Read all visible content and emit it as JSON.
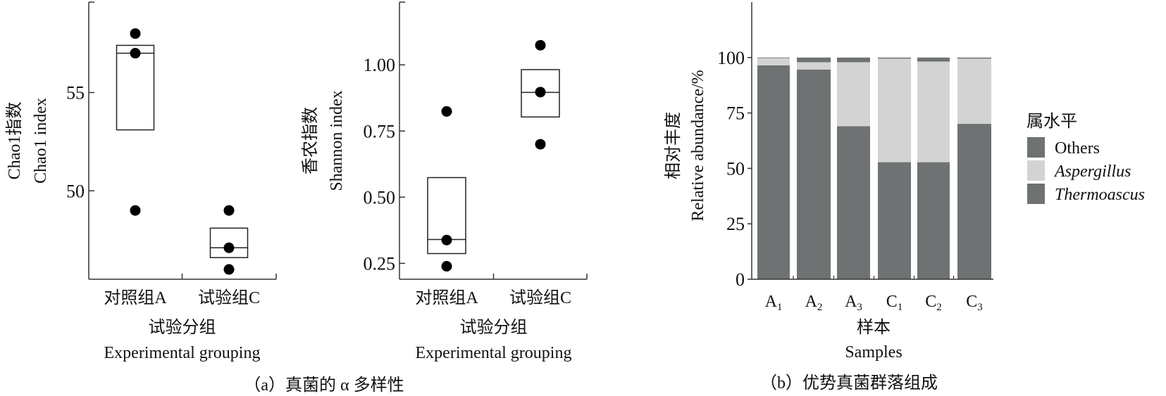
{
  "chart_data": [
    {
      "type": "box",
      "panel": "a-left",
      "ylabel_cn": "Chao1指数",
      "ylabel_en": "Chao1 index",
      "xlabel_cn": "试验分组",
      "xlabel_en": "Experimental grouping",
      "categories": [
        "对照组A",
        "试验组C"
      ],
      "yticks": [
        "50",
        "55"
      ],
      "ytick_values": [
        50,
        55
      ],
      "ylim": [
        45.5,
        59.6
      ],
      "groups": [
        {
          "name": "对照组A",
          "points": [
            58.0,
            57.0,
            49.0
          ],
          "box": {
            "q1": 53.1,
            "median": 57.0,
            "q3": 57.4
          }
        },
        {
          "name": "试验组C",
          "points": [
            49.0,
            47.1,
            46.0
          ],
          "box": {
            "q1": 46.6,
            "median": 47.1,
            "q3": 48.1
          }
        }
      ]
    },
    {
      "type": "box",
      "panel": "a-right",
      "ylabel_cn": "香农指数",
      "ylabel_en": "Shannon index",
      "xlabel_cn": "试验分组",
      "xlabel_en": "Experimental grouping",
      "categories": [
        "对照组A",
        "试验组C"
      ],
      "yticks": [
        "0.25",
        "0.50",
        "0.75",
        "1.00"
      ],
      "ytick_values": [
        0.25,
        0.5,
        0.75,
        1.0
      ],
      "ylim": [
        0.19,
        1.237
      ],
      "groups": [
        {
          "name": "对照组A",
          "points": [
            0.824,
            0.338,
            0.239
          ],
          "box": {
            "q1": 0.287,
            "median": 0.34,
            "q3": 0.574
          }
        },
        {
          "name": "试验组C",
          "points": [
            1.074,
            0.897,
            0.7
          ],
          "box": {
            "q1": 0.803,
            "median": 0.896,
            "q3": 0.982
          }
        }
      ]
    },
    {
      "type": "stacked-bar",
      "panel": "b",
      "ylabel_cn": "相对丰度",
      "ylabel_en": "Relative abundance/%",
      "xlabel_cn": "样本",
      "xlabel_en": "Samples",
      "categories": [
        {
          "base": "A",
          "sub": "1"
        },
        {
          "base": "A",
          "sub": "2"
        },
        {
          "base": "A",
          "sub": "3"
        },
        {
          "base": "C",
          "sub": "1"
        },
        {
          "base": "C",
          "sub": "2"
        },
        {
          "base": "C",
          "sub": "3"
        }
      ],
      "yticks": [
        "0",
        "25",
        "50",
        "75",
        "100"
      ],
      "ytick_values": [
        0,
        25,
        50,
        75,
        100
      ],
      "ylim": [
        0,
        125
      ],
      "legend_title": "属水平",
      "legend_position": "right",
      "series": [
        {
          "name": "Thermoascus",
          "italic": true,
          "color": "#6f7272",
          "values": [
            96.5,
            94.6,
            69.0,
            52.8,
            52.8,
            70.1
          ]
        },
        {
          "name": "Aspergillus",
          "italic": true,
          "color": "#d3d3d3",
          "values": [
            3.2,
            3.3,
            28.9,
            46.7,
            45.4,
            29.4
          ]
        },
        {
          "name": "Others",
          "italic": false,
          "color": "#6f7272",
          "values": [
            0.3,
            2.1,
            2.1,
            0.5,
            1.8,
            0.5
          ]
        }
      ],
      "legend_order": [
        "Others",
        "Aspergillus",
        "Thermoascus"
      ]
    }
  ],
  "captions": {
    "a": "（a）真菌的 α 多样性",
    "b": "（b）优势真菌群落组成"
  }
}
